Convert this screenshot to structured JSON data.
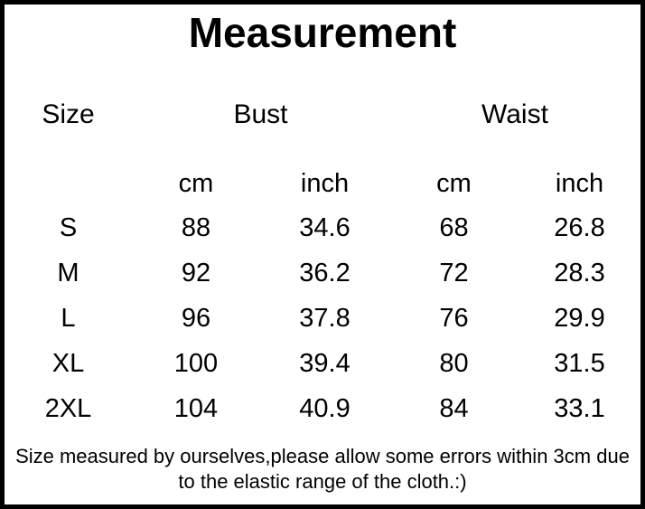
{
  "title": "Measurement",
  "chart_data": {
    "type": "table",
    "title": "Measurement",
    "group_headers": {
      "size": "Size",
      "bust": "Bust",
      "waist": "Waist"
    },
    "unit_headers": [
      "cm",
      "inch",
      "cm",
      "inch"
    ],
    "rows": [
      {
        "size": "S",
        "bust_cm": "88",
        "bust_inch": "34.6",
        "waist_cm": "68",
        "waist_inch": "26.8"
      },
      {
        "size": "M",
        "bust_cm": "92",
        "bust_inch": "36.2",
        "waist_cm": "72",
        "waist_inch": "28.3"
      },
      {
        "size": "L",
        "bust_cm": "96",
        "bust_inch": "37.8",
        "waist_cm": "76",
        "waist_inch": "29.9"
      },
      {
        "size": "XL",
        "bust_cm": "100",
        "bust_inch": "39.4",
        "waist_cm": "80",
        "waist_inch": "31.5"
      },
      {
        "size": "2XL",
        "bust_cm": "104",
        "bust_inch": "40.9",
        "waist_cm": "84",
        "waist_inch": "33.1"
      }
    ],
    "note": "Size measured by ourselves,please allow some errors within 3cm due to the elastic range of the cloth.:)"
  },
  "footer": {
    "line1": "Size measured by ourselves,please allow some errors within 3cm due",
    "line2": "to the elastic range of the cloth.:)"
  },
  "colors": {
    "text": "#000000",
    "border": "#000000",
    "background": "#ffffff"
  }
}
